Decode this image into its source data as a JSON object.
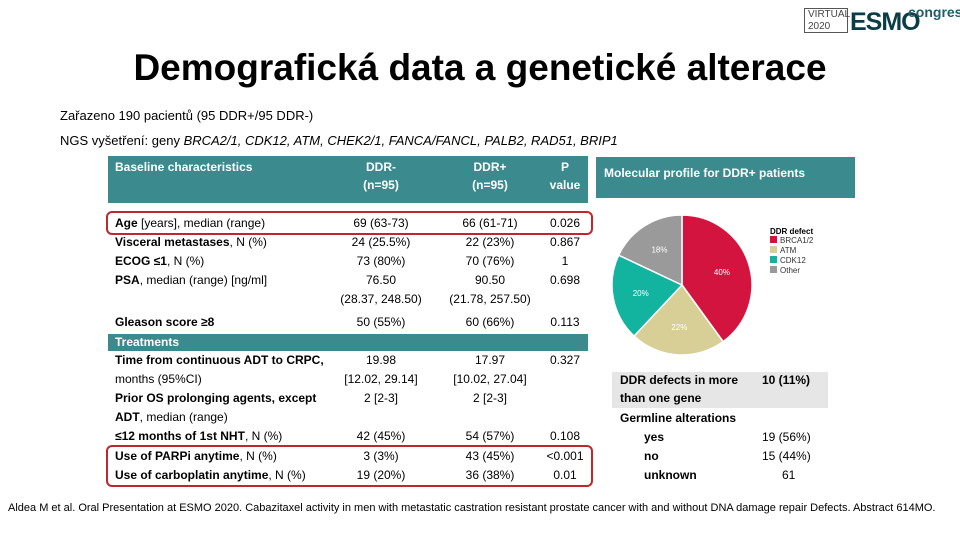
{
  "logo": {
    "virtual": "VIRTUAL",
    "year": "2020",
    "esmo": "ESMO",
    "congress": "congress"
  },
  "title": "Demografická data a genetické alterace",
  "intro": {
    "line1": "Zařazeno 190 pacientů (95 DDR+/95 DDR-)",
    "line2_prefix": "NGS vyšetření: geny ",
    "line2_genes": "BRCA2/1, CDK12, ATM, CHEK2/1, FANCA/FANCL,  PALB2, RAD51, BRIP1"
  },
  "table": {
    "header": {
      "col1": "Baseline characteristics",
      "col2_a": "DDR-",
      "col2_b": "(n=95)",
      "col3_a": "DDR+",
      "col3_b": "(n=95)",
      "col4_a": "P",
      "col4_b": "value"
    },
    "rows": [
      {
        "label_b": "Age",
        "label_n": " [years], median (range)",
        "ddr_neg": "69 (63-73)",
        "ddr_pos": "66 (61-71)",
        "p": "0.026"
      },
      {
        "label_b": "Visceral metastases",
        "label_n": ", N (%)",
        "ddr_neg": "24 (25.5%)",
        "ddr_pos": "22 (23%)",
        "p": "0.867"
      },
      {
        "label_b": "ECOG ≤1",
        "label_n": ", N (%)",
        "ddr_neg": "73 (80%)",
        "ddr_pos": "70 (76%)",
        "p": "1"
      },
      {
        "label_b": "PSA",
        "label_n": ", median (range) [ng/ml]",
        "ddr_neg": "76.50",
        "ddr_pos": "90.50",
        "p": "0.698"
      },
      {
        "label_b": "",
        "label_n": "",
        "ddr_neg": "(28.37, 248.50)",
        "ddr_pos": "(21.78, 257.50)",
        "p": ""
      },
      {
        "label_b": "Gleason score ≥8",
        "label_n": "",
        "ddr_neg": "50 (55%)",
        "ddr_pos": "60 (66%)",
        "p": "0.113"
      }
    ],
    "treatments_header": "Treatments",
    "treatment_rows": [
      {
        "label_b": "Time from continuous ADT to CRPC,",
        "label_n": "",
        "ddr_neg": "19.98",
        "ddr_pos": "17.97",
        "p": "0.327"
      },
      {
        "label_b": "",
        "label_n": "months (95%CI)",
        "ddr_neg": "[12.02, 29.14]",
        "ddr_pos": "[10.02, 27.04]",
        "p": ""
      },
      {
        "label_b": "Prior OS prolonging agents, except",
        "label_n": "",
        "ddr_neg": "2 [2-3]",
        "ddr_pos": "2 [2-3]",
        "p": ""
      },
      {
        "label_b": "ADT",
        "label_n": ", median (range)",
        "ddr_neg": "",
        "ddr_pos": "",
        "p": ""
      },
      {
        "label_b": "≤12 months of 1st NHT",
        "label_n": ", N (%)",
        "ddr_neg": "42 (45%)",
        "ddr_pos": "54 (57%)",
        "p": "0.108"
      },
      {
        "label_b": "Use of PARPi anytime",
        "label_n": ", N (%)",
        "ddr_neg": "3 (3%)",
        "ddr_pos": "43 (45%)",
        "p": "<0.001"
      },
      {
        "label_b": "Use of carboplatin anytime",
        "label_n": ", N (%)",
        "ddr_neg": "19 (20%)",
        "ddr_pos": "36 (38%)",
        "p": "0.01"
      }
    ]
  },
  "molecular": {
    "header": "Molecular profile for DDR+ patients",
    "chart_data": {
      "type": "pie",
      "legend_title": "DDR defect",
      "categories": [
        "BRCA1/2",
        "ATM",
        "CDK12",
        "Other"
      ],
      "values": [
        40,
        22,
        20,
        18
      ],
      "labels": [
        "40%",
        "22%",
        "20%",
        "18%"
      ],
      "colors": [
        "#d3143f",
        "#d8cf96",
        "#12b39f",
        "#9a9a9a"
      ],
      "legend_position": "right"
    }
  },
  "right_table": {
    "multi_label_1": "DDR defects in more",
    "multi_label_2": "than one gene",
    "multi_value": "10 (11%)",
    "germline_label": "Germline alterations",
    "rows": [
      {
        "label": "yes",
        "value": "19 (56%)"
      },
      {
        "label": "no",
        "value": "15 (44%)"
      },
      {
        "label": "unknown",
        "value": "61"
      }
    ]
  },
  "footnote": "Aldea M et al. Oral Presentation at ESMO 2020. Cabazitaxel activity in men with metastatic castration resistant prostate cancer with and without DNA damage repair Defects. Abstract  614MO."
}
